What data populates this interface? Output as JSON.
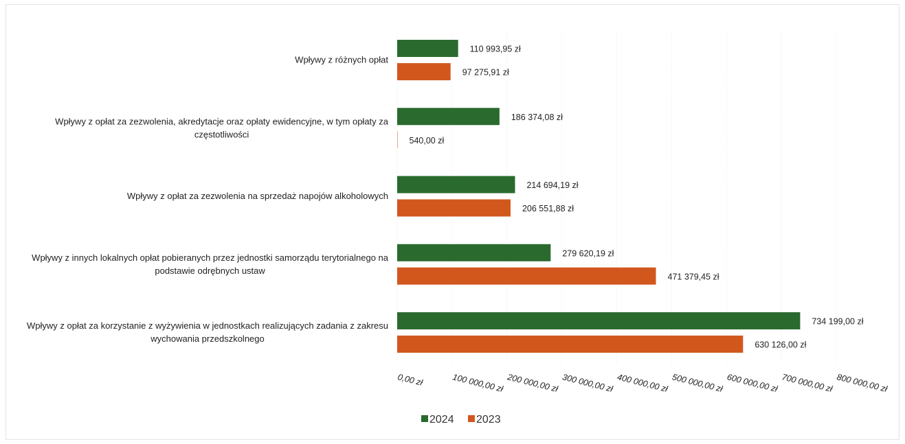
{
  "chart_data": {
    "type": "bar",
    "orientation": "horizontal",
    "title": "",
    "xlabel": "",
    "ylabel": "",
    "xlim": [
      0,
      800000
    ],
    "x_ticks": [
      0,
      100000,
      200000,
      300000,
      400000,
      500000,
      600000,
      700000,
      800000
    ],
    "x_tick_labels": [
      "0,00 zł",
      "100 000,00 zł",
      "200 000,00 zł",
      "300 000,00 zł",
      "400 000,00 zł",
      "500 000,00 zł",
      "600 000,00 zł",
      "700 000,00 zł",
      "800 000,00 zł"
    ],
    "grid": true,
    "legend_position": "bottom",
    "categories": [
      [
        "Wpływy z różnych opłat"
      ],
      [
        "Wpływy z opłat za zezwolenia, akredytacje oraz opłaty ewidencyjne, w tym opłaty za",
        "częstotliwości"
      ],
      [
        "Wpływy z opłat za zezwolenia na sprzedaż napojów alkoholowych"
      ],
      [
        "Wpływy z innych lokalnych opłat pobieranych przez jednostki samorządu terytorialnego na",
        "podstawie odrębnych ustaw"
      ],
      [
        "Wpływy z opłat za korzystanie z wyżywienia w jednostkach realizujących zadania z zakresu",
        "wychowania przedszkolnego"
      ]
    ],
    "series": [
      {
        "name": "2024",
        "color": "#2a6a2e",
        "values": [
          110993.95,
          186374.08,
          214694.19,
          279620.19,
          734199.0
        ],
        "labels": [
          "110 993,95 zł",
          "186 374,08 zł",
          "214 694,19 zł",
          "279 620,19 zł",
          "734 199,00 zł"
        ]
      },
      {
        "name": "2023",
        "color": "#d2571d",
        "values": [
          97275.91,
          540.0,
          206551.88,
          471379.45,
          630126.0
        ],
        "labels": [
          "97 275,91 zł",
          "540,00 zł",
          "206 551,88 zł",
          "471 379,45 zł",
          "630 126,00 zł"
        ]
      }
    ]
  }
}
